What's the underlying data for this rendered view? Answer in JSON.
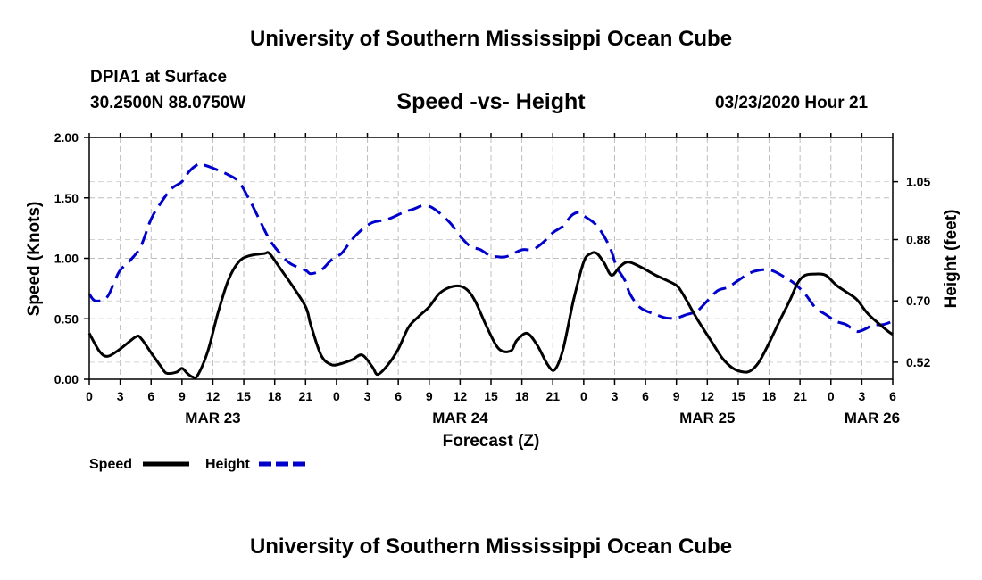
{
  "header": {
    "title": "University of Southern Mississippi Ocean Cube",
    "station": "DPIA1 at Surface",
    "coords": "30.2500N 88.0750W",
    "subtitle": "Speed -vs- Height",
    "datetime": "03/23/2020 Hour 21"
  },
  "footer": {
    "title": "University of Southern Mississippi Ocean Cube"
  },
  "chart_data": {
    "type": "line",
    "xlabel": "Forecast (Z)",
    "x_range": [
      0,
      78
    ],
    "x_ticks": [
      {
        "x": 0,
        "label": "0"
      },
      {
        "x": 3,
        "label": "3"
      },
      {
        "x": 6,
        "label": "6"
      },
      {
        "x": 9,
        "label": "9"
      },
      {
        "x": 12,
        "label": "12"
      },
      {
        "x": 15,
        "label": "15"
      },
      {
        "x": 18,
        "label": "18"
      },
      {
        "x": 21,
        "label": "21"
      },
      {
        "x": 24,
        "label": "0"
      },
      {
        "x": 27,
        "label": "3"
      },
      {
        "x": 30,
        "label": "6"
      },
      {
        "x": 33,
        "label": "9"
      },
      {
        "x": 36,
        "label": "12"
      },
      {
        "x": 39,
        "label": "15"
      },
      {
        "x": 42,
        "label": "18"
      },
      {
        "x": 45,
        "label": "21"
      },
      {
        "x": 48,
        "label": "0"
      },
      {
        "x": 51,
        "label": "3"
      },
      {
        "x": 54,
        "label": "6"
      },
      {
        "x": 57,
        "label": "9"
      },
      {
        "x": 60,
        "label": "12"
      },
      {
        "x": 63,
        "label": "15"
      },
      {
        "x": 66,
        "label": "18"
      },
      {
        "x": 69,
        "label": "21"
      },
      {
        "x": 72,
        "label": "0"
      },
      {
        "x": 75,
        "label": "3"
      },
      {
        "x": 78,
        "label": "6"
      }
    ],
    "date_labels": [
      {
        "x": 12,
        "label": "MAR 23"
      },
      {
        "x": 36,
        "label": "MAR 24"
      },
      {
        "x": 60,
        "label": "MAR 25"
      },
      {
        "x": 76,
        "label": "MAR 26"
      }
    ],
    "left_axis": {
      "label": "Speed (Knots)",
      "range": [
        0,
        2
      ],
      "ticks": [
        "0.00",
        "0.50",
        "1.00",
        "1.50",
        "2.00"
      ]
    },
    "right_axis": {
      "label": "Height (feet)",
      "range": [
        0.47,
        1.18
      ],
      "ticks": [
        "0.52",
        "0.70",
        "0.88",
        "1.05"
      ]
    },
    "grid": true,
    "legend": [
      {
        "name": "Speed",
        "color": "#000000",
        "style": "solid"
      },
      {
        "name": "Height",
        "color": "#0000cc",
        "style": "dashed"
      }
    ],
    "series": [
      {
        "name": "Speed",
        "axis": "left",
        "color": "#000000",
        "points": [
          [
            0,
            0.38
          ],
          [
            1,
            0.23
          ],
          [
            1.8,
            0.19
          ],
          [
            3,
            0.25
          ],
          [
            4.5,
            0.35
          ],
          [
            5,
            0.34
          ],
          [
            6,
            0.22
          ],
          [
            7,
            0.1
          ],
          [
            7.5,
            0.05
          ],
          [
            8.5,
            0.06
          ],
          [
            9,
            0.09
          ],
          [
            9.5,
            0.05
          ],
          [
            10,
            0.02
          ],
          [
            10.5,
            0.03
          ],
          [
            11.5,
            0.23
          ],
          [
            12.5,
            0.55
          ],
          [
            13.5,
            0.82
          ],
          [
            14.5,
            0.97
          ],
          [
            15.5,
            1.02
          ],
          [
            17,
            1.04
          ],
          [
            17.5,
            1.04
          ],
          [
            18.5,
            0.92
          ],
          [
            19.5,
            0.8
          ],
          [
            21,
            0.6
          ],
          [
            21.5,
            0.45
          ],
          [
            22.5,
            0.2
          ],
          [
            23.5,
            0.12
          ],
          [
            24.5,
            0.13
          ],
          [
            25.5,
            0.16
          ],
          [
            26.5,
            0.2
          ],
          [
            27.5,
            0.1
          ],
          [
            28,
            0.04
          ],
          [
            29,
            0.12
          ],
          [
            30,
            0.25
          ],
          [
            31,
            0.43
          ],
          [
            32,
            0.52
          ],
          [
            33,
            0.6
          ],
          [
            34,
            0.71
          ],
          [
            35,
            0.76
          ],
          [
            36,
            0.77
          ],
          [
            36.8,
            0.73
          ],
          [
            37.5,
            0.64
          ],
          [
            38.5,
            0.45
          ],
          [
            39.5,
            0.28
          ],
          [
            40.2,
            0.23
          ],
          [
            41,
            0.24
          ],
          [
            41.5,
            0.32
          ],
          [
            42.5,
            0.38
          ],
          [
            43.5,
            0.28
          ],
          [
            44.5,
            0.12
          ],
          [
            45.2,
            0.08
          ],
          [
            46,
            0.25
          ],
          [
            47,
            0.65
          ],
          [
            48,
            0.97
          ],
          [
            48.7,
            1.04
          ],
          [
            49.3,
            1.04
          ],
          [
            50,
            0.96
          ],
          [
            50.7,
            0.86
          ],
          [
            51.5,
            0.93
          ],
          [
            52.3,
            0.97
          ],
          [
            53.5,
            0.93
          ],
          [
            55,
            0.86
          ],
          [
            56.5,
            0.8
          ],
          [
            57.2,
            0.76
          ],
          [
            58,
            0.65
          ],
          [
            59,
            0.5
          ],
          [
            60.5,
            0.3
          ],
          [
            61.5,
            0.17
          ],
          [
            62.5,
            0.09
          ],
          [
            63.5,
            0.06
          ],
          [
            64.2,
            0.07
          ],
          [
            65,
            0.14
          ],
          [
            66,
            0.3
          ],
          [
            67,
            0.48
          ],
          [
            68,
            0.65
          ],
          [
            68.8,
            0.8
          ],
          [
            69.5,
            0.86
          ],
          [
            70.5,
            0.87
          ],
          [
            71.5,
            0.86
          ],
          [
            72.5,
            0.78
          ],
          [
            73.5,
            0.72
          ],
          [
            74.5,
            0.66
          ],
          [
            75.5,
            0.55
          ],
          [
            76.5,
            0.47
          ],
          [
            77.5,
            0.4
          ],
          [
            78,
            0.37
          ]
        ]
      },
      {
        "name": "Height",
        "axis": "right",
        "color": "#0000cc",
        "points": [
          [
            0,
            0.72
          ],
          [
            0.6,
            0.7
          ],
          [
            1.7,
            0.71
          ],
          [
            2.5,
            0.76
          ],
          [
            3,
            0.79
          ],
          [
            4,
            0.82
          ],
          [
            5,
            0.86
          ],
          [
            6,
            0.94
          ],
          [
            7,
            0.99
          ],
          [
            8,
            1.03
          ],
          [
            9,
            1.05
          ],
          [
            9.7,
            1.08
          ],
          [
            10.5,
            1.1
          ],
          [
            11,
            1.1
          ],
          [
            12,
            1.09
          ],
          [
            13.5,
            1.07
          ],
          [
            14.5,
            1.05
          ],
          [
            15.5,
            1.0
          ],
          [
            16.5,
            0.94
          ],
          [
            17.5,
            0.88
          ],
          [
            18.5,
            0.84
          ],
          [
            19.5,
            0.81
          ],
          [
            21,
            0.79
          ],
          [
            21.5,
            0.78
          ],
          [
            22.5,
            0.79
          ],
          [
            23.5,
            0.82
          ],
          [
            24.5,
            0.84
          ],
          [
            25.5,
            0.88
          ],
          [
            26.5,
            0.91
          ],
          [
            27.5,
            0.93
          ],
          [
            29,
            0.94
          ],
          [
            30.5,
            0.96
          ],
          [
            31.5,
            0.97
          ],
          [
            32.5,
            0.98
          ],
          [
            33.5,
            0.97
          ],
          [
            35,
            0.93
          ],
          [
            36,
            0.89
          ],
          [
            37,
            0.86
          ],
          [
            38,
            0.85
          ],
          [
            39,
            0.83
          ],
          [
            39.5,
            0.83
          ],
          [
            40.5,
            0.83
          ],
          [
            42,
            0.85
          ],
          [
            43,
            0.85
          ],
          [
            44,
            0.87
          ],
          [
            45,
            0.9
          ],
          [
            46,
            0.92
          ],
          [
            46.8,
            0.95
          ],
          [
            47.5,
            0.96
          ],
          [
            48,
            0.95
          ],
          [
            49.3,
            0.92
          ],
          [
            50.5,
            0.86
          ],
          [
            51.2,
            0.8
          ],
          [
            52,
            0.76
          ],
          [
            52.5,
            0.72
          ],
          [
            53.5,
            0.68
          ],
          [
            55,
            0.66
          ],
          [
            56,
            0.65
          ],
          [
            57,
            0.65
          ],
          [
            58,
            0.66
          ],
          [
            59,
            0.67
          ],
          [
            60,
            0.7
          ],
          [
            61,
            0.73
          ],
          [
            62,
            0.74
          ],
          [
            63,
            0.76
          ],
          [
            64,
            0.78
          ],
          [
            65,
            0.79
          ],
          [
            66.2,
            0.79
          ],
          [
            67.5,
            0.77
          ],
          [
            68.5,
            0.75
          ],
          [
            69.5,
            0.72
          ],
          [
            70.5,
            0.68
          ],
          [
            71.5,
            0.66
          ],
          [
            72.5,
            0.64
          ],
          [
            73.5,
            0.63
          ],
          [
            74.5,
            0.61
          ],
          [
            75.5,
            0.62
          ],
          [
            76,
            0.63
          ],
          [
            77,
            0.63
          ],
          [
            78,
            0.64
          ]
        ]
      }
    ]
  }
}
